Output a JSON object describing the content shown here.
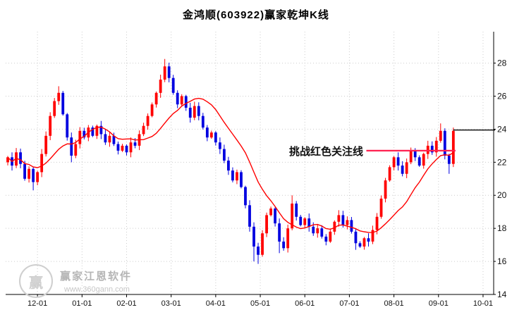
{
  "page_title": "金鸿顺(603922)赢家乾坤K线",
  "annotation": {
    "text": "挑战红色关注线"
  },
  "watermark": {
    "brand": "赢家江恩软件",
    "url": "www.360gann.com",
    "logo_char": "赢"
  },
  "colors": {
    "up": "#ff0000",
    "down": "#0000e0",
    "ma": "#ff0000",
    "attention_line": "#ff2050",
    "target_line": "#000000",
    "grid": "#cccccc",
    "axis": "#000000",
    "text": "#111111"
  },
  "chart_data": {
    "type": "candlestick",
    "title": "金鸿顺(603922)赢家乾坤K线",
    "ylabel": "",
    "xlabel": "",
    "ylim": [
      14,
      29.9
    ],
    "yticks": [
      14,
      16,
      18,
      20,
      22,
      24,
      26,
      28
    ],
    "xticks": [
      {
        "label": "12-01",
        "idx": 7
      },
      {
        "label": "01-01",
        "idx": 17.5
      },
      {
        "label": "02-01",
        "idx": 28
      },
      {
        "label": "03-01",
        "idx": 38.5
      },
      {
        "label": "04-01",
        "idx": 49
      },
      {
        "label": "05-01",
        "idx": 59.5
      },
      {
        "label": "06-01",
        "idx": 70
      },
      {
        "label": "07-01",
        "idx": 80.5
      },
      {
        "label": "08-01",
        "idx": 91
      },
      {
        "label": "09-01",
        "idx": 101.5
      },
      {
        "label": "10-01",
        "idx": 112
      }
    ],
    "x_index_span": 115,
    "first_open": 22.0,
    "closes": [
      22.3,
      21.8,
      22.6,
      21.9,
      21.0,
      21.6,
      20.8,
      21.4,
      22.5,
      23.6,
      24.8,
      25.7,
      26.2,
      24.9,
      23.5,
      22.4,
      23.1,
      23.9,
      23.5,
      24.1,
      23.6,
      24.2,
      23.7,
      23.2,
      23.6,
      23.1,
      22.7,
      23.0,
      22.6,
      23.2,
      23.0,
      23.7,
      24.2,
      24.8,
      25.5,
      26.2,
      27.0,
      27.8,
      27.1,
      26.2,
      25.5,
      26.0,
      25.3,
      24.7,
      25.4,
      24.8,
      24.1,
      23.5,
      23.8,
      23.2,
      22.8,
      22.1,
      21.5,
      20.9,
      21.4,
      20.5,
      19.4,
      18.1,
      16.9,
      16.4,
      17.7,
      18.8,
      19.2,
      18.3,
      17.2,
      16.8,
      18.0,
      19.5,
      18.7,
      18.2,
      18.6,
      18.1,
      17.7,
      18.0,
      17.5,
      17.2,
      17.8,
      18.4,
      18.8,
      18.2,
      18.5,
      17.8,
      17.1,
      16.9,
      17.4,
      17.2,
      17.9,
      18.7,
      19.8,
      20.9,
      21.7,
      22.3,
      21.8,
      21.3,
      22.0,
      22.7,
      22.3,
      21.8,
      22.5,
      23.0,
      22.6,
      23.3,
      23.9,
      22.4,
      21.9,
      23.9
    ],
    "wick_extremes": {
      "high": {
        "12": 26.6,
        "37": 28.25,
        "67": 20.0,
        "102": 24.35,
        "105": 24.1
      },
      "low": {
        "6": 20.3,
        "15": 22.0,
        "58": 16.0,
        "59": 15.85,
        "64": 16.5,
        "82": 16.7,
        "104": 21.3
      }
    },
    "ma_window": 13,
    "lines": {
      "attention": {
        "label": "挑战红色关注线",
        "value": 22.7,
        "from_idx": 84.5,
        "to_idx": 105.5
      },
      "target": {
        "value": 23.95,
        "from_idx": 105,
        "to": "right-edge"
      }
    },
    "legend_position": "none",
    "grid": "dotted"
  }
}
